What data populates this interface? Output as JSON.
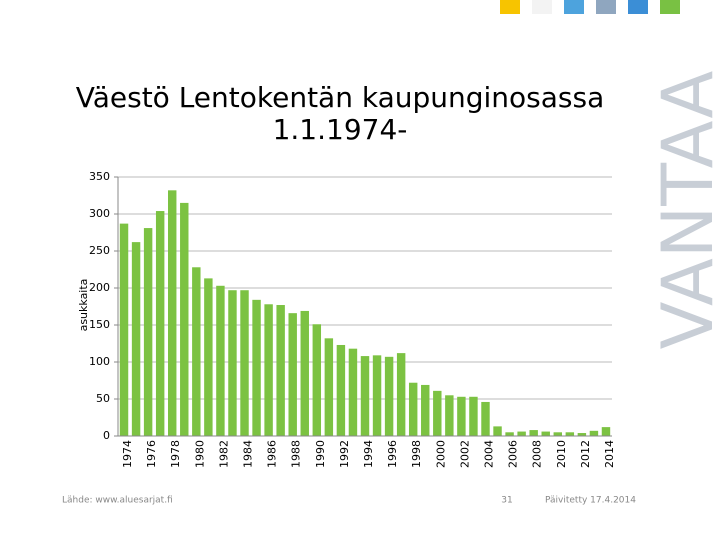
{
  "chart_data": {
    "type": "bar",
    "title": [
      "Väestö Lentokentän kaupunginosassa",
      "1.1.1974-"
    ],
    "y_label": "asukkaita",
    "categories": [
      "1974",
      null,
      "1976",
      null,
      "1978",
      null,
      "1980",
      null,
      "1982",
      null,
      "1984",
      null,
      "1986",
      null,
      "1988",
      null,
      "1990",
      null,
      "1992",
      null,
      "1994",
      null,
      "1996",
      null,
      "1998",
      null,
      "2000",
      null,
      "2002",
      null,
      "2004",
      null,
      "2006",
      null,
      "2008",
      null,
      "2010",
      null,
      "2012",
      null,
      "2014"
    ],
    "values": [
      287,
      262,
      281,
      304,
      332,
      315,
      228,
      213,
      203,
      197,
      197,
      184,
      178,
      177,
      166,
      169,
      151,
      132,
      123,
      118,
      108,
      109,
      107,
      112,
      72,
      69,
      61,
      55,
      53,
      53,
      46,
      13,
      5,
      6,
      8,
      6,
      5,
      5,
      4,
      7,
      12
    ],
    "color": "#7cc242",
    "ylim": [
      0,
      350
    ],
    "yticks": [
      0,
      50,
      100,
      150,
      200,
      250,
      300,
      350
    ],
    "grid": true
  },
  "footer": {
    "source": "Lähde: www.aluesarjat.fi",
    "page": "31",
    "updated": "Päivitetty 17.4.2014"
  },
  "logo": "VANTAA"
}
